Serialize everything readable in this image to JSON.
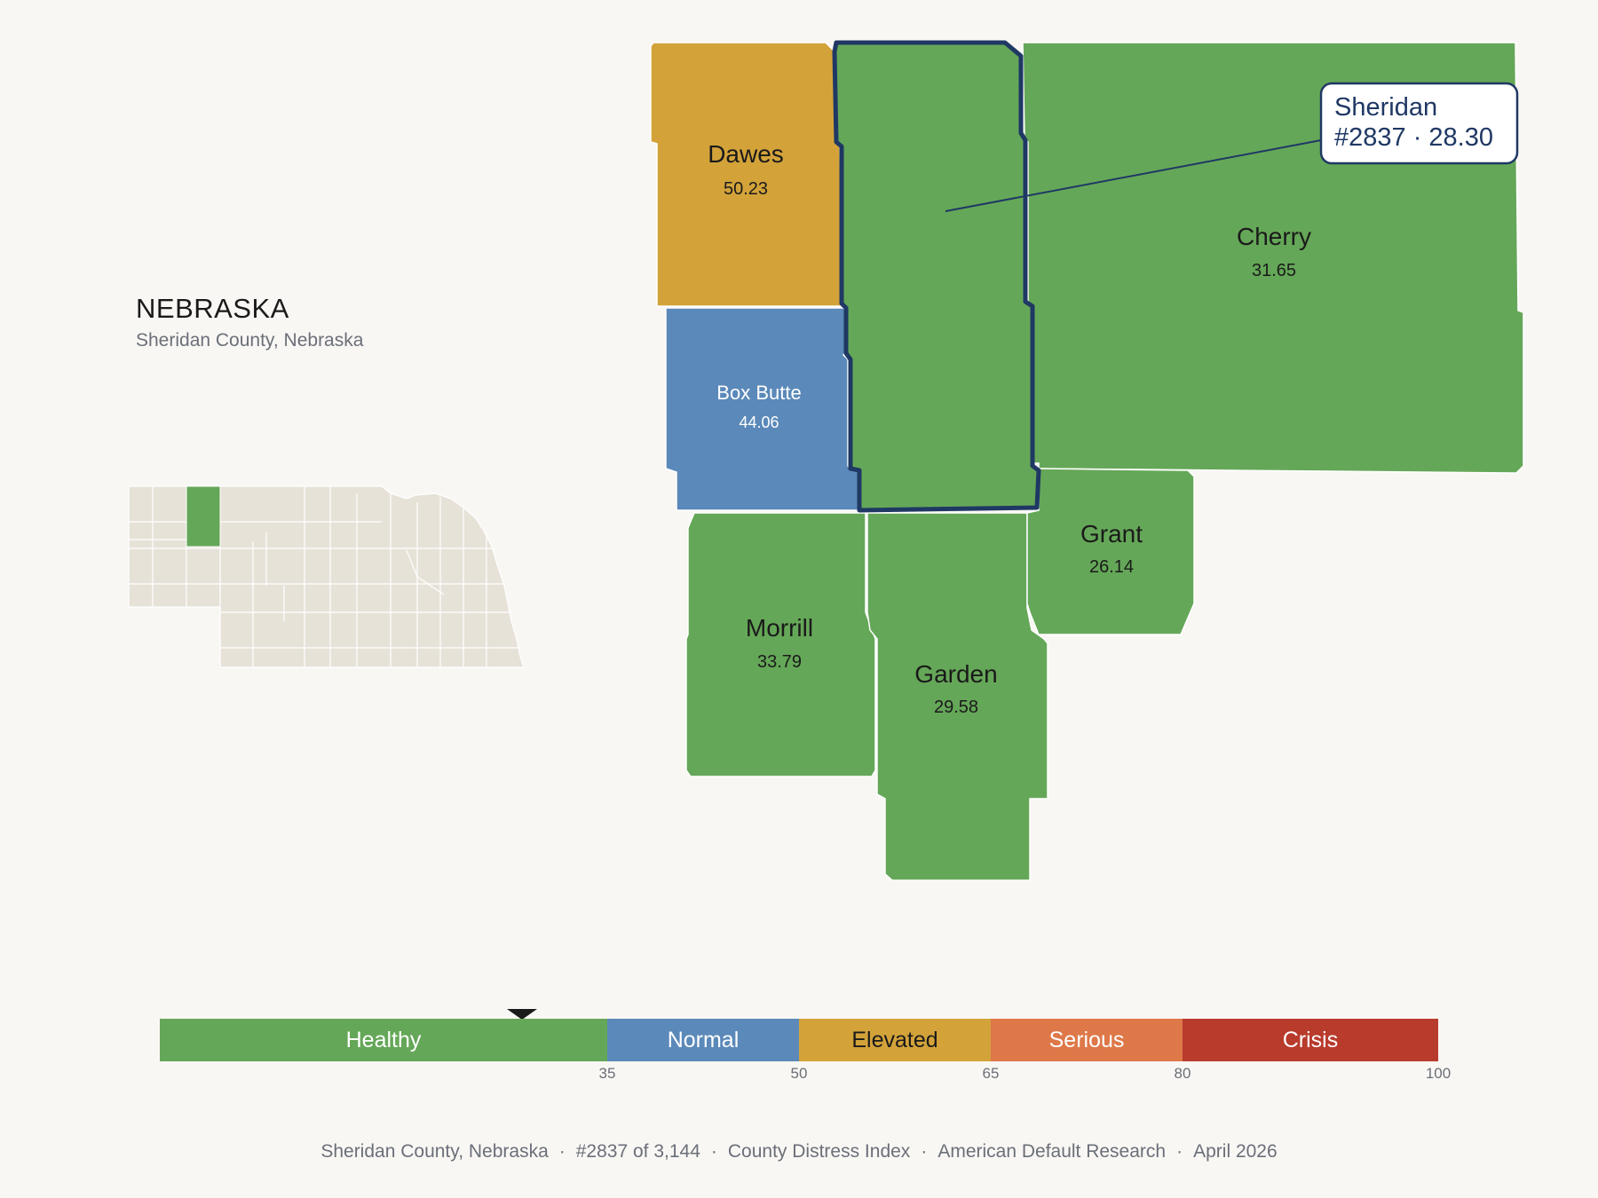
{
  "state": {
    "title": "NEBRASKA",
    "subtitle": "Sheridan County, Nebraska"
  },
  "colors": {
    "healthy": "#65a758",
    "normal": "#5b89b9",
    "elevated": "#d3a33a",
    "serious": "#de7848",
    "crisis": "#b83b2c",
    "highlight_outline": "#1f3864",
    "inset_fill": "#e7e2d8"
  },
  "counties": [
    {
      "name": "Sheridan",
      "value": "",
      "band": "healthy",
      "highlighted": true
    },
    {
      "name": "Dawes",
      "value": "50.23",
      "band": "elevated"
    },
    {
      "name": "Cherry",
      "value": "31.65",
      "band": "healthy"
    },
    {
      "name": "Box Butte",
      "value": "44.06",
      "band": "normal"
    },
    {
      "name": "Morrill",
      "value": "33.79",
      "band": "healthy"
    },
    {
      "name": "Garden",
      "value": "29.58",
      "band": "healthy"
    },
    {
      "name": "Grant",
      "value": "26.14",
      "band": "healthy"
    }
  ],
  "callout": {
    "name": "Sheridan",
    "detail": "#2837 · 28.30",
    "score": 28.3
  },
  "legend": {
    "bands": [
      {
        "label": "Healthy",
        "from": 0,
        "to": 35,
        "color": "#65a758",
        "text": "#ffffff"
      },
      {
        "label": "Normal",
        "from": 35,
        "to": 50,
        "color": "#5b89b9",
        "text": "#ffffff"
      },
      {
        "label": "Elevated",
        "from": 50,
        "to": 65,
        "color": "#d3a33a",
        "text": "#1a1a1a"
      },
      {
        "label": "Serious",
        "from": 65,
        "to": 80,
        "color": "#de7848",
        "text": "#ffffff"
      },
      {
        "label": "Crisis",
        "from": 80,
        "to": 100,
        "color": "#b83b2c",
        "text": "#ffffff"
      }
    ],
    "ticks": [
      "35",
      "50",
      "65",
      "80",
      "100"
    ],
    "max": 100
  },
  "footer": {
    "place": "Sheridan County, Nebraska",
    "rank": "#2837 of 3,144",
    "index": "County Distress Index",
    "source": "American Default Research",
    "date": "April 2026"
  }
}
